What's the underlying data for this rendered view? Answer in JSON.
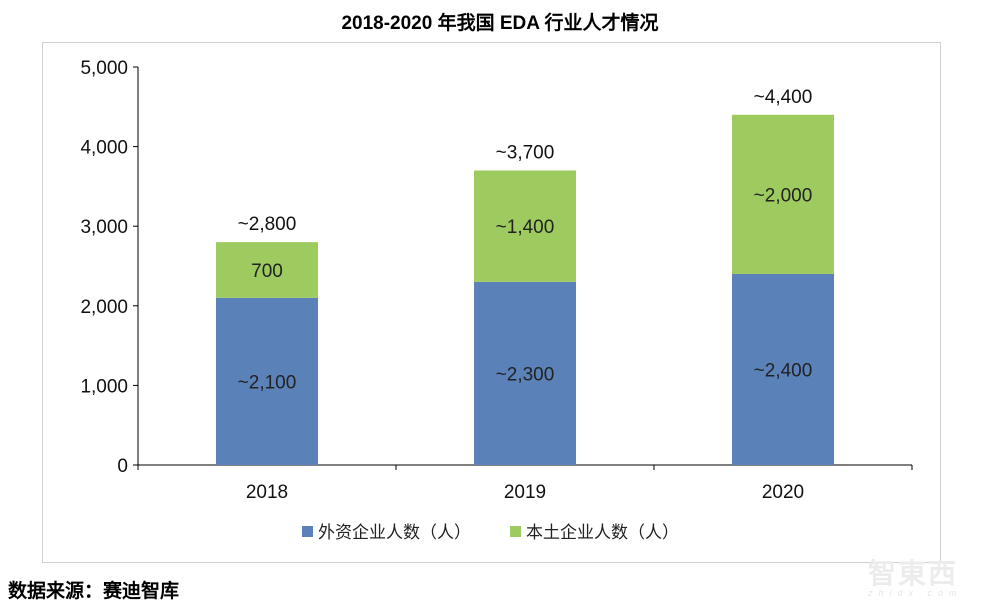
{
  "chart_data": {
    "type": "bar",
    "stacked": true,
    "title": "2018-2020 年我国 EDA 行业人才情况",
    "categories": [
      "2018",
      "2019",
      "2020"
    ],
    "series": [
      {
        "name": "外资企业人数（人）",
        "values": [
          2100,
          2300,
          2400
        ],
        "labels": [
          "~2,100",
          "~2,300",
          "~2,400"
        ],
        "color": "#5a82b9"
      },
      {
        "name": "本土企业人数（人）",
        "values": [
          700,
          1400,
          2000
        ],
        "labels": [
          "700",
          "~1,400",
          "~2,000"
        ],
        "color": "#9dcb5f"
      }
    ],
    "totals": [
      "~2,800",
      "~3,700",
      "~4,400"
    ],
    "ylim": [
      0,
      5000
    ],
    "yticks": [
      0,
      1000,
      2000,
      3000,
      4000,
      5000
    ],
    "ytick_labels": [
      "0",
      "1,000",
      "2,000",
      "3,000",
      "4,000",
      "5,000"
    ],
    "grid": false,
    "legend_position": "bottom"
  },
  "source": "数据来源：赛迪智库",
  "watermark": {
    "logo": "智東西",
    "url": "zhidx.com"
  }
}
